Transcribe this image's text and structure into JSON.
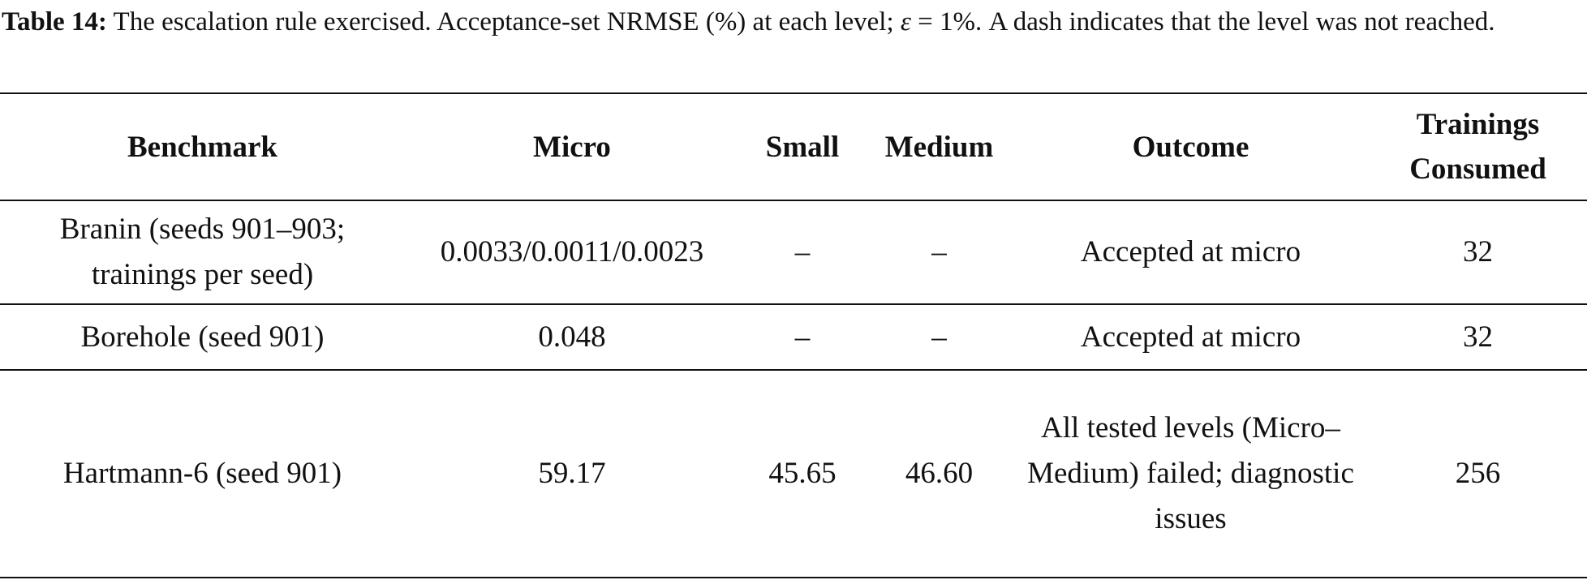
{
  "caption": {
    "label": "Table 14:",
    "text_1": "The escalation rule exercised. Acceptance-set NRMSE (%) at each level; ",
    "symbol": "ε",
    "text_2": " = 1%. A dash indicates that the level was not reached."
  },
  "table": {
    "header": [
      "Benchmark",
      "Micro",
      "Small",
      "Medium",
      "Outcome",
      "Trainings Consumed"
    ],
    "rows": [
      [
        "Branin (seeds 901–903; trainings per seed)",
        "0.0033/0.0011/0.0023",
        "–",
        "–",
        "Accepted at micro",
        "32"
      ],
      [
        "Borehole (seed 901)",
        "0.048",
        "–",
        "–",
        "Accepted at micro",
        "32"
      ],
      [
        "Hartmann-6 (seed 901)",
        "59.17",
        "45.65",
        "46.60",
        "All tested levels (Micro–Medium) failed; diagnostic issues",
        "256"
      ]
    ]
  }
}
